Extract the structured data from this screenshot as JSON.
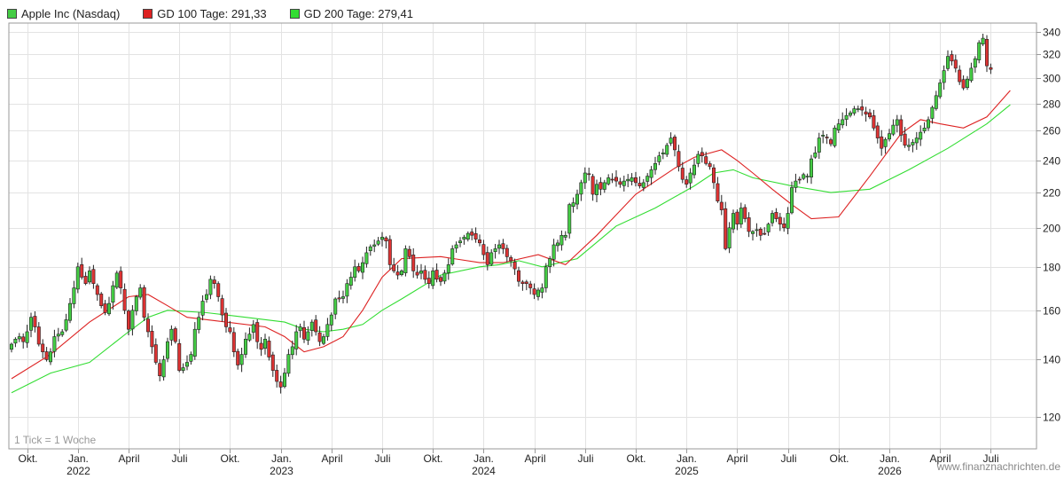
{
  "legend": {
    "price": {
      "label": "Apple Inc (Nasdaq)",
      "color": "#44cc44"
    },
    "ma100": {
      "label": "GD 100 Tage: 291,33",
      "color": "#dd2222"
    },
    "ma200": {
      "label": "GD 200 Tage: 279,41",
      "color": "#33dd33"
    }
  },
  "tick_note": "1 Tick = 1 Woche",
  "watermark": "www.finanznachrichten.de",
  "chart_data": {
    "type": "candlestick",
    "y_scale": "log",
    "ylim": [
      110,
      348
    ],
    "y_ticks": [
      120,
      140,
      160,
      180,
      200,
      220,
      240,
      260,
      280,
      300,
      320,
      340
    ],
    "x_ticks": [
      {
        "label": "Okt.",
        "year": "",
        "index": 4
      },
      {
        "label": "Jan.",
        "year": "2022",
        "index": 17
      },
      {
        "label": "April",
        "year": "",
        "index": 30
      },
      {
        "label": "Juli",
        "year": "",
        "index": 43
      },
      {
        "label": "Okt.",
        "year": "",
        "index": 56
      },
      {
        "label": "Jan.",
        "year": "2023",
        "index": 69
      },
      {
        "label": "April",
        "year": "",
        "index": 82
      },
      {
        "label": "Juli",
        "year": "",
        "index": 95
      },
      {
        "label": "Okt.",
        "year": "",
        "index": 108
      },
      {
        "label": "Jan.",
        "year": "2024",
        "index": 121
      },
      {
        "label": "April",
        "year": "",
        "index": 134
      },
      {
        "label": "Juli",
        "year": "",
        "index": 147
      },
      {
        "label": "Okt.",
        "year": "",
        "index": 160
      },
      {
        "label": "Jan.",
        "year": "2025",
        "index": 173
      },
      {
        "label": "April",
        "year": "",
        "index": 186
      },
      {
        "label": "Juli",
        "year": "",
        "index": 199
      },
      {
        "label": "Okt.",
        "year": "",
        "index": 212
      },
      {
        "label": "Jan.",
        "year": "2026",
        "index": 225
      },
      {
        "label": "April",
        "year": "",
        "index": 238
      },
      {
        "label": "Juli",
        "year": "",
        "index": 251
      }
    ],
    "weekly_close": [
      146,
      148,
      149,
      147,
      151,
      157,
      153,
      146,
      143,
      140,
      143,
      149,
      150,
      151,
      156,
      163,
      170,
      180,
      175,
      172,
      178,
      172,
      167,
      162,
      159,
      163,
      171,
      177,
      170,
      160,
      152,
      160,
      166,
      170,
      157,
      151,
      145,
      139,
      134,
      140,
      147,
      152,
      147,
      136,
      137,
      139,
      142,
      152,
      157,
      164,
      167,
      174,
      172,
      166,
      158,
      153,
      151,
      143,
      138,
      142,
      148,
      150,
      154,
      147,
      144,
      148,
      141,
      136,
      132,
      130,
      135,
      142,
      145,
      151,
      153,
      148,
      151,
      155,
      151,
      147,
      149,
      154,
      158,
      165,
      165,
      166,
      172,
      175,
      180,
      178,
      182,
      187,
      190,
      191,
      193,
      195,
      193,
      181,
      178,
      176,
      178,
      189,
      185,
      178,
      176,
      178,
      174,
      172,
      178,
      174,
      173,
      177,
      181,
      189,
      191,
      193,
      195,
      197,
      196,
      194,
      192,
      186,
      181,
      187,
      189,
      191,
      189,
      185,
      183,
      179,
      173,
      172,
      172,
      170,
      167,
      169,
      170,
      180,
      184,
      191,
      192,
      196,
      196,
      213,
      214,
      219,
      226,
      232,
      231,
      219,
      225,
      222,
      226,
      229,
      228,
      227,
      225,
      227,
      228,
      229,
      226,
      224,
      226,
      230,
      234,
      238,
      243,
      245,
      250,
      255,
      247,
      236,
      228,
      225,
      232,
      237,
      244,
      243,
      238,
      236,
      226,
      215,
      210,
      189,
      200,
      208,
      202,
      211,
      205,
      198,
      198,
      199,
      196,
      197,
      202,
      208,
      205,
      202,
      200,
      208,
      223,
      227,
      228,
      231,
      230,
      241,
      245,
      255,
      257,
      255,
      251,
      262,
      265,
      268,
      271,
      273,
      276,
      276,
      275,
      272,
      270,
      262,
      255,
      248,
      254,
      258,
      264,
      268,
      257,
      250,
      250,
      252,
      255,
      259,
      262,
      268,
      277,
      286,
      296,
      306,
      318,
      314,
      308,
      297,
      292,
      299,
      308,
      316,
      330,
      334,
      310,
      307
    ],
    "ma100": {
      "name": "GD 100 Tage: 291,33",
      "points": [
        [
          0,
          133
        ],
        [
          10,
          142
        ],
        [
          20,
          155
        ],
        [
          30,
          166
        ],
        [
          35,
          167
        ],
        [
          40,
          162
        ],
        [
          45,
          157
        ],
        [
          55,
          155
        ],
        [
          65,
          153
        ],
        [
          70,
          149
        ],
        [
          75,
          143
        ],
        [
          80,
          145
        ],
        [
          85,
          149
        ],
        [
          90,
          160
        ],
        [
          95,
          175
        ],
        [
          100,
          184
        ],
        [
          110,
          185
        ],
        [
          120,
          182
        ],
        [
          126,
          182
        ],
        [
          135,
          186
        ],
        [
          142,
          181
        ],
        [
          150,
          196
        ],
        [
          160,
          219
        ],
        [
          170,
          235
        ],
        [
          175,
          242
        ],
        [
          182,
          247
        ],
        [
          186,
          240
        ],
        [
          190,
          232
        ],
        [
          195,
          222
        ],
        [
          200,
          213
        ],
        [
          205,
          205
        ],
        [
          212,
          206
        ],
        [
          220,
          230
        ],
        [
          228,
          258
        ],
        [
          233,
          268
        ],
        [
          238,
          265
        ],
        [
          244,
          262
        ],
        [
          250,
          270
        ],
        [
          256,
          290
        ]
      ]
    },
    "ma200": {
      "name": "GD 200 Tage: 279,41",
      "points": [
        [
          0,
          128
        ],
        [
          10,
          135
        ],
        [
          20,
          139
        ],
        [
          30,
          151
        ],
        [
          35,
          157
        ],
        [
          40,
          160
        ],
        [
          50,
          159
        ],
        [
          60,
          157
        ],
        [
          70,
          155
        ],
        [
          75,
          152
        ],
        [
          80,
          151
        ],
        [
          85,
          152
        ],
        [
          90,
          154
        ],
        [
          95,
          160
        ],
        [
          100,
          165
        ],
        [
          110,
          176
        ],
        [
          120,
          180
        ],
        [
          125,
          181
        ],
        [
          130,
          183
        ],
        [
          136,
          180
        ],
        [
          145,
          184
        ],
        [
          155,
          201
        ],
        [
          165,
          211
        ],
        [
          175,
          224
        ],
        [
          180,
          232
        ],
        [
          185,
          234
        ],
        [
          190,
          229
        ],
        [
          200,
          224
        ],
        [
          210,
          220
        ],
        [
          220,
          222
        ],
        [
          230,
          234
        ],
        [
          240,
          248
        ],
        [
          250,
          265
        ],
        [
          256,
          279
        ]
      ]
    }
  }
}
